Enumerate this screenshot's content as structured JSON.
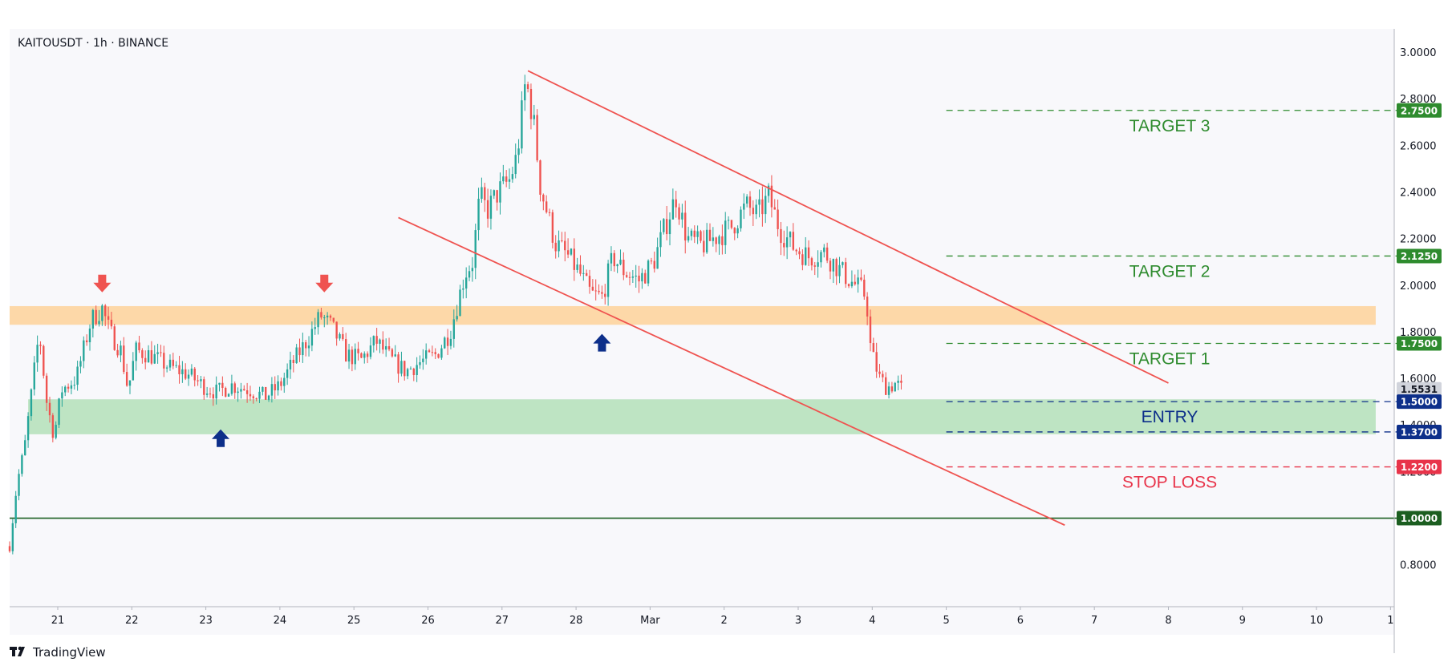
{
  "header": {
    "symbol_line": "KAITOUSDT · 1h · BINANCE"
  },
  "branding": {
    "logo_text": "TradingView"
  },
  "colors": {
    "up": "#26a69a",
    "down": "#ef5350",
    "resistance_zone": "#fdd49e",
    "entry_zone": "#b7e1bc",
    "target": "#2e8b2e",
    "entry": "#0d2f8a",
    "stop": "#e8344a",
    "base_line": "#1b5e20",
    "channel": "#ef5350",
    "current_price_tag": "#d1d4dc"
  },
  "chart_data": {
    "type": "candlestick",
    "symbol": "KAITOUSDT",
    "interval": "1h",
    "exchange": "BINANCE",
    "y_axis": {
      "ticks": [
        "0.8000",
        "1.2000",
        "1.4000",
        "1.6000",
        "1.8000",
        "2.0000",
        "2.2000",
        "2.4000",
        "2.6000",
        "2.8000",
        "3.0000"
      ],
      "ylim": [
        0.62,
        3.1
      ]
    },
    "x_axis": {
      "ticks": [
        {
          "label": "21",
          "day": 21
        },
        {
          "label": "22",
          "day": 22
        },
        {
          "label": "23",
          "day": 23
        },
        {
          "label": "24",
          "day": 24
        },
        {
          "label": "25",
          "day": 25
        },
        {
          "label": "26",
          "day": 26
        },
        {
          "label": "27",
          "day": 27
        },
        {
          "label": "28",
          "day": 28
        },
        {
          "label": "Mar",
          "day": 29
        },
        {
          "label": "2",
          "day": 30
        },
        {
          "label": "3",
          "day": 31
        },
        {
          "label": "4",
          "day": 32
        },
        {
          "label": "5",
          "day": 33
        },
        {
          "label": "6",
          "day": 34
        },
        {
          "label": "7",
          "day": 35
        },
        {
          "label": "8",
          "day": 36
        },
        {
          "label": "9",
          "day": 37
        },
        {
          "label": "10",
          "day": 38
        },
        {
          "label": "1",
          "day": 39
        }
      ],
      "xlim": [
        20.35,
        39.05
      ]
    },
    "price_path": [
      [
        20.35,
        0.88
      ],
      [
        20.45,
        1.15
      ],
      [
        20.55,
        1.3
      ],
      [
        20.65,
        1.55
      ],
      [
        20.75,
        1.8
      ],
      [
        20.85,
        1.5
      ],
      [
        20.95,
        1.35
      ],
      [
        21.05,
        1.55
      ],
      [
        21.25,
        1.6
      ],
      [
        21.45,
        1.85
      ],
      [
        21.6,
        1.9
      ],
      [
        21.7,
        1.8
      ],
      [
        21.85,
        1.72
      ],
      [
        21.95,
        1.55
      ],
      [
        22.05,
        1.72
      ],
      [
        22.25,
        1.7
      ],
      [
        22.5,
        1.65
      ],
      [
        22.75,
        1.62
      ],
      [
        23.0,
        1.56
      ],
      [
        23.15,
        1.54
      ],
      [
        23.35,
        1.57
      ],
      [
        23.6,
        1.55
      ],
      [
        23.8,
        1.52
      ],
      [
        24.0,
        1.57
      ],
      [
        24.2,
        1.68
      ],
      [
        24.4,
        1.78
      ],
      [
        24.55,
        1.87
      ],
      [
        24.7,
        1.82
      ],
      [
        24.9,
        1.7
      ],
      [
        25.1,
        1.68
      ],
      [
        25.3,
        1.76
      ],
      [
        25.5,
        1.68
      ],
      [
        25.7,
        1.63
      ],
      [
        25.9,
        1.67
      ],
      [
        26.1,
        1.7
      ],
      [
        26.3,
        1.8
      ],
      [
        26.5,
        2.05
      ],
      [
        26.6,
        2.1
      ],
      [
        26.7,
        2.38
      ],
      [
        26.8,
        2.32
      ],
      [
        26.95,
        2.4
      ],
      [
        27.1,
        2.45
      ],
      [
        27.2,
        2.55
      ],
      [
        27.32,
        2.88
      ],
      [
        27.42,
        2.72
      ],
      [
        27.52,
        2.42
      ],
      [
        27.62,
        2.3
      ],
      [
        27.72,
        2.18
      ],
      [
        27.9,
        2.12
      ],
      [
        28.05,
        2.05
      ],
      [
        28.2,
        1.96
      ],
      [
        28.35,
        1.95
      ],
      [
        28.5,
        2.12
      ],
      [
        28.65,
        2.06
      ],
      [
        28.85,
        2.02
      ],
      [
        29.05,
        2.1
      ],
      [
        29.2,
        2.25
      ],
      [
        29.35,
        2.38
      ],
      [
        29.5,
        2.2
      ],
      [
        29.7,
        2.17
      ],
      [
        29.9,
        2.21
      ],
      [
        30.1,
        2.25
      ],
      [
        30.3,
        2.34
      ],
      [
        30.45,
        2.3
      ],
      [
        30.6,
        2.38
      ],
      [
        30.75,
        2.24
      ],
      [
        30.95,
        2.16
      ],
      [
        31.15,
        2.12
      ],
      [
        31.35,
        2.14
      ],
      [
        31.55,
        2.07
      ],
      [
        31.7,
        2.02
      ],
      [
        31.85,
        1.98
      ],
      [
        31.92,
        1.95
      ],
      [
        31.98,
        1.72
      ],
      [
        32.1,
        1.6
      ],
      [
        32.2,
        1.56
      ],
      [
        32.32,
        1.58
      ],
      [
        32.4,
        1.55
      ]
    ],
    "resistance_zone": {
      "from_day": 20.35,
      "to_day": 38.8,
      "low": 1.83,
      "high": 1.91
    },
    "entry_zone": {
      "from_day": 20.6,
      "to_day": 38.8,
      "low": 1.36,
      "high": 1.51
    },
    "levels": [
      {
        "key": "target3",
        "price": 2.75,
        "tag": "2.7500",
        "label": "TARGET 3",
        "style": "dashed",
        "from_day": 33.0
      },
      {
        "key": "target2",
        "price": 2.125,
        "tag": "2.1250",
        "label": "TARGET 2",
        "style": "dashed",
        "from_day": 33.0
      },
      {
        "key": "target1",
        "price": 1.75,
        "tag": "1.7500",
        "label": "TARGET 1",
        "style": "dashed",
        "from_day": 33.0
      },
      {
        "key": "entry_high",
        "price": 1.5,
        "tag": "1.5000",
        "label": "ENTRY",
        "style": "dashed",
        "from_day": 33.0
      },
      {
        "key": "entry_low",
        "price": 1.37,
        "tag": "1.3700",
        "label": "",
        "style": "dashed",
        "from_day": 33.0
      },
      {
        "key": "stop",
        "price": 1.22,
        "tag": "1.2200",
        "label": "STOP LOSS",
        "style": "dashed",
        "from_day": 33.0
      },
      {
        "key": "base",
        "price": 1.0,
        "tag": "1.0000",
        "label": "",
        "style": "solid",
        "from_day": 20.35
      }
    ],
    "current_price": {
      "price": 1.5531,
      "tag": "1.5531"
    },
    "channel_lines": [
      {
        "name": "upper",
        "from": [
          27.35,
          2.92
        ],
        "to": [
          36.0,
          1.58
        ]
      },
      {
        "name": "lower",
        "from": [
          25.6,
          2.29
        ],
        "to": [
          34.6,
          0.97
        ]
      }
    ],
    "annotations": [
      {
        "kind": "arrow-down",
        "day": 21.6,
        "price": 2.0,
        "color": "down"
      },
      {
        "kind": "arrow-down",
        "day": 24.6,
        "price": 2.0,
        "color": "down"
      },
      {
        "kind": "arrow-up",
        "day": 23.2,
        "price": 1.35,
        "color": "entry"
      },
      {
        "kind": "arrow-up",
        "day": 28.35,
        "price": 1.76,
        "color": "entry"
      }
    ]
  }
}
